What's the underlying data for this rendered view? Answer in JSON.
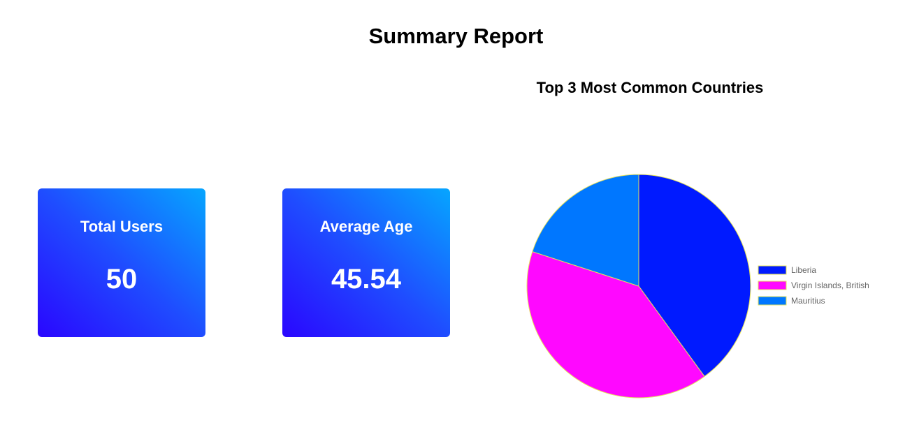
{
  "page": {
    "title": "Summary Report"
  },
  "stats": {
    "total_users": {
      "label": "Total Users",
      "value": "50"
    },
    "average_age": {
      "label": "Average Age",
      "value": "45.54"
    }
  },
  "chart_data": {
    "type": "pie",
    "title": "Top 3 Most Common Countries",
    "categories": [
      "Liberia",
      "Virgin Islands, British",
      "Mauritius"
    ],
    "values": [
      2,
      2,
      1
    ],
    "colors": [
      "#001aff",
      "#ff08ff",
      "#0077ff"
    ],
    "border_color": "#e6e35a",
    "legend_position": "right"
  }
}
